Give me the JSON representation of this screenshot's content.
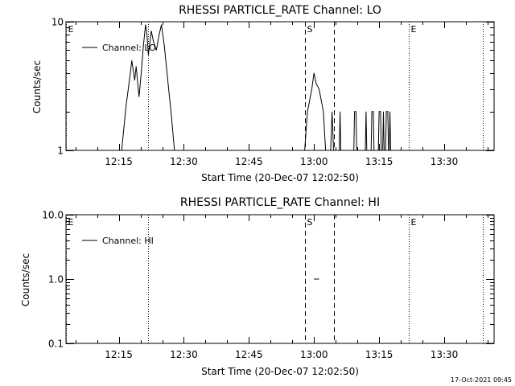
{
  "footer": {
    "timestamp": "17-Oct-2021 09:45"
  },
  "chart_data": [
    {
      "type": "line",
      "title": "RHESSI PARTICLE_RATE Channel: LO",
      "xlabel": "Start Time (20-Dec-07 12:02:50)",
      "ylabel": "Counts/sec",
      "yscale": "log",
      "xlim": [
        "12:02:50",
        "13:41:30"
      ],
      "ylim": [
        1,
        10
      ],
      "x_ticks": [
        "12:15",
        "12:30",
        "12:45",
        "13:00",
        "13:15",
        "13:30"
      ],
      "y_ticks": [
        "1",
        "10"
      ],
      "legend": {
        "position": "top-left",
        "entries": [
          "Channel: LO"
        ]
      },
      "markers": [
        {
          "label": "E",
          "time": "12:02:50",
          "style": "dotted"
        },
        {
          "label": "",
          "time": "12:21:50",
          "style": "dotted"
        },
        {
          "label": "S",
          "time": "12:57:50",
          "style": "dashed"
        },
        {
          "label": "",
          "time": "13:04:30",
          "style": "dashed"
        },
        {
          "label": "E",
          "time": "13:21:50",
          "style": "dotted"
        },
        {
          "label": "",
          "time": "13:38:50",
          "style": "dotted"
        }
      ],
      "series": [
        {
          "name": "Channel: LO",
          "segments": [
            [
              [
                "12:15:40",
                1
              ],
              [
                "12:16:40",
                2.2
              ],
              [
                "12:17:40",
                4.0
              ],
              [
                "12:18:00",
                5.0
              ],
              [
                "12:18:40",
                3.5
              ],
              [
                "12:19:00",
                4.5
              ],
              [
                "12:19:40",
                2.6
              ],
              [
                "12:20:10",
                4.0
              ],
              [
                "12:20:40",
                6.5
              ],
              [
                "12:21:10",
                9.5
              ],
              [
                "12:21:30",
                8.0
              ],
              [
                "12:21:50",
                5.5
              ],
              [
                "12:22:30",
                8.5
              ],
              [
                "12:23:00",
                7.0
              ],
              [
                "12:23:40",
                6.0
              ],
              [
                "12:24:10",
                7.5
              ],
              [
                "12:24:50",
                9.5
              ],
              [
                "12:25:30",
                6.5
              ],
              [
                "12:26:30",
                3.0
              ],
              [
                "12:27:10",
                1.8
              ],
              [
                "12:27:50",
                1
              ]
            ],
            [
              [
                "12:57:50",
                1
              ],
              [
                "12:58:30",
                2.0
              ],
              [
                "12:59:30",
                3.0
              ],
              [
                "13:00:00",
                4.0
              ],
              [
                "13:00:30",
                3.3
              ],
              [
                "13:01:10",
                3.0
              ],
              [
                "13:02:10",
                2.0
              ],
              [
                "13:02:40",
                1
              ]
            ],
            [
              [
                "13:03:50",
                1
              ],
              [
                "13:04:10",
                2
              ],
              [
                "13:04:30",
                1
              ]
            ],
            [
              [
                "13:05:50",
                1
              ],
              [
                "13:06:00",
                2
              ],
              [
                "13:06:10",
                1
              ]
            ],
            [
              [
                "13:09:10",
                1
              ],
              [
                "13:09:20",
                2
              ],
              [
                "13:09:40",
                2
              ],
              [
                "13:09:50",
                1
              ]
            ],
            [
              [
                "13:11:50",
                1
              ],
              [
                "13:12:00",
                2
              ],
              [
                "13:12:10",
                1
              ]
            ],
            [
              [
                "13:13:10",
                1
              ],
              [
                "13:13:20",
                2
              ],
              [
                "13:13:40",
                2
              ],
              [
                "13:13:50",
                1
              ]
            ],
            [
              [
                "13:14:50",
                1
              ],
              [
                "13:15:00",
                2
              ],
              [
                "13:15:20",
                2
              ],
              [
                "13:15:30",
                1
              ]
            ],
            [
              [
                "13:15:50",
                1
              ],
              [
                "13:16:00",
                2
              ],
              [
                "13:16:10",
                1
              ]
            ],
            [
              [
                "13:16:30",
                1
              ],
              [
                "13:16:40",
                2
              ],
              [
                "13:17:00",
                2
              ],
              [
                "13:17:10",
                1
              ]
            ],
            [
              [
                "13:17:20",
                1
              ],
              [
                "13:17:30",
                2
              ],
              [
                "13:17:40",
                1
              ]
            ]
          ]
        }
      ]
    },
    {
      "type": "line",
      "title": "RHESSI PARTICLE_RATE Channel: HI",
      "xlabel": "Start Time (20-Dec-07 12:02:50)",
      "ylabel": "Counts/sec",
      "yscale": "log",
      "xlim": [
        "12:02:50",
        "13:41:30"
      ],
      "ylim": [
        0.1,
        10
      ],
      "x_ticks": [
        "12:15",
        "12:30",
        "12:45",
        "13:00",
        "13:15",
        "13:30"
      ],
      "y_ticks": [
        "0.1",
        "1.0",
        "10.0"
      ],
      "legend": {
        "position": "top-left",
        "entries": [
          "Channel: HI"
        ]
      },
      "markers": [
        {
          "label": "E",
          "time": "12:02:50",
          "style": "dotted"
        },
        {
          "label": "",
          "time": "12:21:50",
          "style": "dotted"
        },
        {
          "label": "S",
          "time": "12:57:50",
          "style": "dashed"
        },
        {
          "label": "",
          "time": "13:04:30",
          "style": "dashed"
        },
        {
          "label": "E",
          "time": "13:21:50",
          "style": "dotted"
        },
        {
          "label": "",
          "time": "13:38:50",
          "style": "dotted"
        }
      ],
      "series": [
        {
          "name": "Channel: HI",
          "segments": [
            [
              [
                "13:00:00",
                1.0
              ],
              [
                "13:01:10",
                1.0
              ]
            ]
          ]
        }
      ]
    }
  ]
}
